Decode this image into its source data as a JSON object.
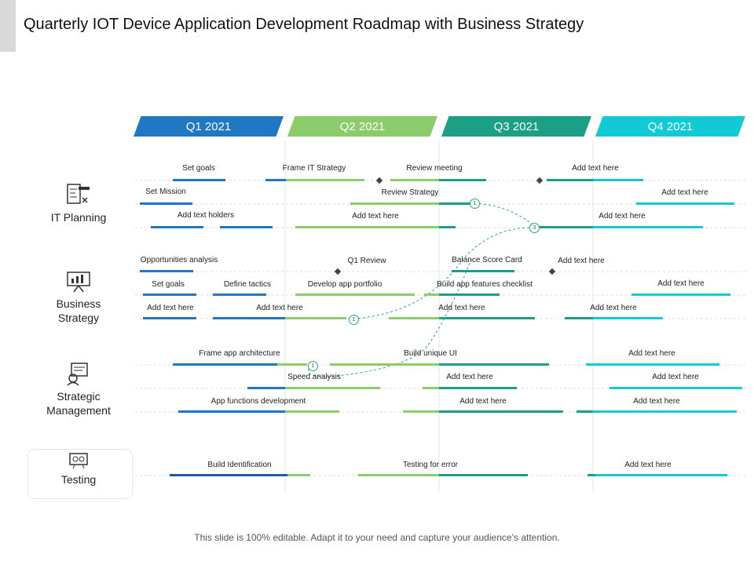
{
  "title": "Quarterly IOT Device Application Development Roadmap with Business Strategy",
  "colors": {
    "q1": "#1f78c1",
    "q2": "#8dcc6a",
    "q3": "#1ba085",
    "q4": "#12c9d6",
    "line": "#dcdcdc"
  },
  "quarters": [
    "Q1 2021",
    "Q2 2021",
    "Q3 2021",
    "Q4 2021"
  ],
  "categories": {
    "it_planning": "IT Planning",
    "business_strategy_1": "Business",
    "business_strategy_2": "Strategy",
    "strategic_management_1": "Strategic",
    "strategic_management_2": "Management",
    "testing": "Testing"
  },
  "tasks": {
    "set_goals": "Set goals",
    "frame_it_strategy": "Frame IT Strategy",
    "review_meeting": "Review meeting",
    "add_text_1": "Add text here",
    "set_mission": "Set Mission",
    "review_strategy": "Review Strategy",
    "add_text_2": "Add text here",
    "add_text_holders": "Add text holders",
    "add_text_3": "Add text here",
    "add_text_4": "Add text here",
    "opportunities_analysis": "Opportunities analysis",
    "q1_review": "Q1 Review",
    "balance_score_card": "Balance Score Card",
    "add_text_5": "Add text here",
    "set_goals_2": "Set goals",
    "define_tactics": "Define tactics",
    "develop_app_portfolio": "Develop app portfolio",
    "build_app_features_checklist": "Build app features checklist",
    "add_text_6": "Add text here",
    "add_text_7": "Add text here",
    "add_text_8": "Add text here",
    "add_text_9": "Add text here",
    "add_text_10": "Add text here",
    "frame_app_architecture": "Frame app architecture",
    "build_unique_ui": "Build unique UI",
    "add_text_11": "Add text here",
    "speed_analysis": "Speed analysis",
    "add_text_12": "Add text here",
    "add_text_13": "Add text here",
    "app_functions_development": "App functions development",
    "add_text_14": "Add text here",
    "add_text_15": "Add text here",
    "build_identification": "Build Identification",
    "testing_for_error": "Testing for error",
    "add_text_16": "Add text here"
  },
  "markers": {
    "m1": "1",
    "m2": "1",
    "m3": "1",
    "m4": "3"
  },
  "icons": [
    "it-planning-icon",
    "business-strategy-icon",
    "strategic-management-icon",
    "testing-icon"
  ],
  "footer": "This slide is 100% editable. Adapt it to your need and capture your audience’s attention."
}
